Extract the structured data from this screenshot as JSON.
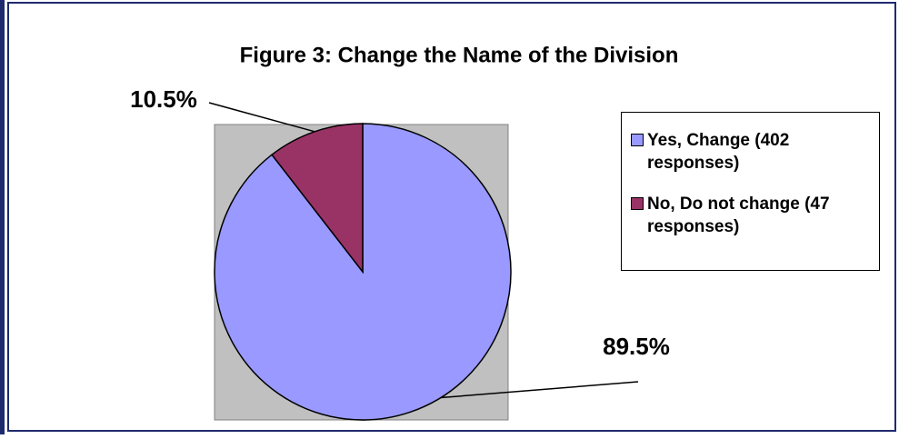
{
  "chart_data": {
    "type": "pie",
    "title": "Figure 3: Change the Name of the Division",
    "series": [
      {
        "name": "Yes, Change (402 responses)",
        "color": "#9999ff"
      },
      {
        "name": "No, Do not change (47 responses)",
        "color": "#993366"
      }
    ],
    "values": [
      89.5,
      10.5
    ],
    "value_labels": [
      "89.5%",
      "10.5%"
    ]
  }
}
